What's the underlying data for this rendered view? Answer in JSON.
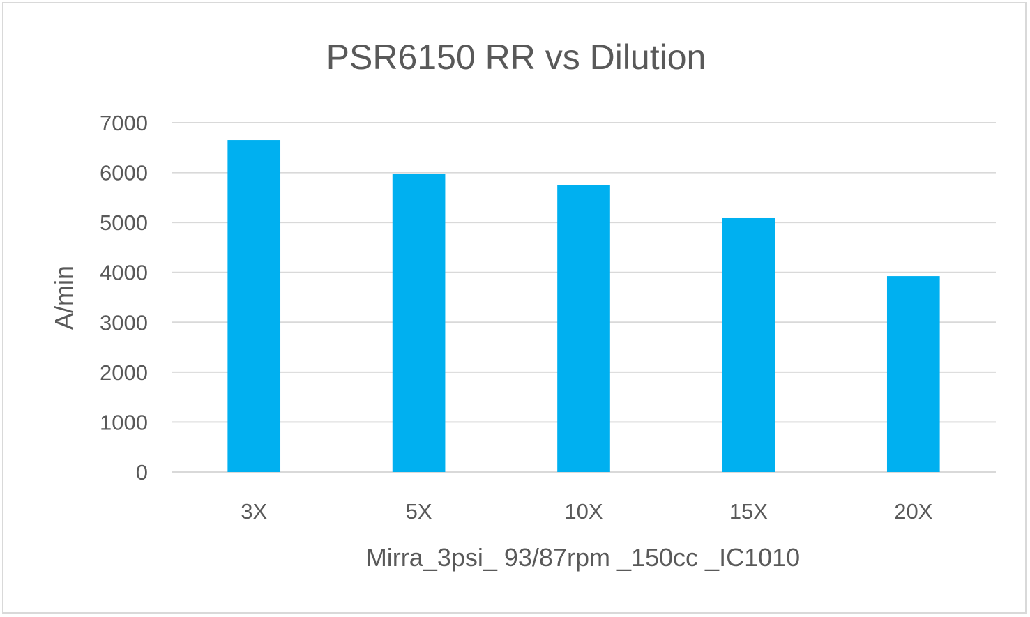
{
  "chart_data": {
    "type": "bar",
    "title": "PSR6150 RR vs Dilution",
    "xlabel": "Mirra_3psi_ 93/87rpm _150cc _IC1010",
    "ylabel": "A/min",
    "categories": [
      "3X",
      "5X",
      "10X",
      "15X",
      "20X"
    ],
    "values": [
      6650,
      5975,
      5750,
      5100,
      3925
    ],
    "ylim": [
      0,
      7000
    ],
    "yticks": [
      0,
      1000,
      2000,
      3000,
      4000,
      5000,
      6000,
      7000
    ],
    "grid": true,
    "legend": "none",
    "bar_color": "#00b0f0",
    "grid_color": "#d9d9d9",
    "text_color": "#595959"
  }
}
